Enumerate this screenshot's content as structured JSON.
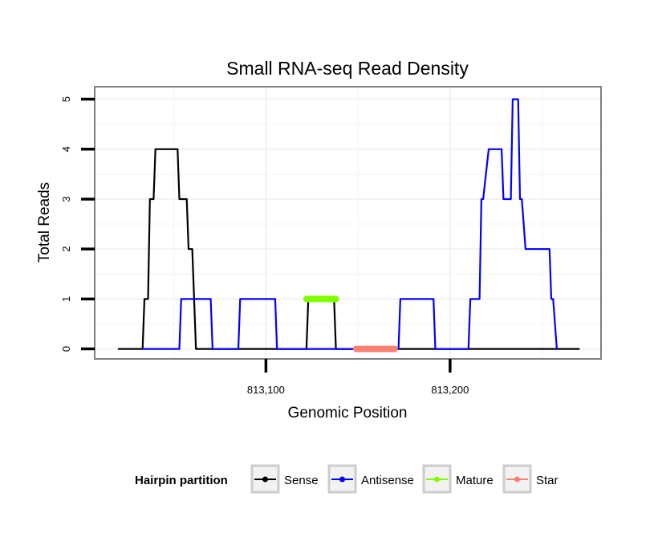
{
  "chart_data": {
    "type": "line",
    "title": "Small RNA-seq Read Density",
    "xlabel": "Genomic Position",
    "ylabel": "Total Reads",
    "xlim": [
      813007,
      813282
    ],
    "ylim": [
      -0.2,
      5.25
    ],
    "x_ticks": [
      813100,
      813200
    ],
    "x_tick_labels": [
      "813,100",
      "813,200"
    ],
    "y_ticks": [
      0,
      1,
      2,
      3,
      4,
      5
    ],
    "y_tick_labels": [
      "0",
      "1",
      "2",
      "3",
      "4",
      "5"
    ],
    "grid": true,
    "legend": {
      "title": "Hairpin partition",
      "position": "bottom",
      "entries": [
        {
          "name": "Sense",
          "color": "#000000"
        },
        {
          "name": "Antisense",
          "color": "#0000ff"
        },
        {
          "name": "Mature",
          "color": "#7fff00"
        },
        {
          "name": "Star",
          "color": "#fa8072"
        }
      ]
    },
    "series": [
      {
        "name": "Sense",
        "color": "#000000",
        "x": [
          813020,
          813033,
          813034,
          813036,
          813037,
          813039,
          813040,
          813044,
          813052,
          813053,
          813057,
          813058,
          813060,
          813062,
          813068,
          813122,
          813123,
          813137,
          813138,
          813160,
          813190,
          813230,
          813270
        ],
        "y": [
          0,
          0,
          1,
          1,
          3,
          3,
          4,
          4,
          4,
          3,
          3,
          2,
          2,
          0,
          0,
          0,
          1,
          1,
          0,
          0,
          0,
          0,
          0
        ]
      },
      {
        "name": "Antisense",
        "color": "#0000ff",
        "x": [
          813033,
          813053,
          813054,
          813070,
          813071,
          813085,
          813086,
          813105,
          813106,
          813172,
          813173,
          813191,
          813192,
          813210,
          813211,
          813216,
          813217,
          813218,
          813221,
          813228,
          813229,
          813233,
          813234,
          813237,
          813238,
          813239,
          813240,
          813241,
          813243,
          813254,
          813255,
          813256,
          813258
        ],
        "y": [
          0,
          0,
          1,
          1,
          0,
          0,
          1,
          1,
          0,
          0,
          1,
          1,
          0,
          0,
          1,
          1,
          3,
          3,
          4,
          4,
          3,
          3,
          5,
          5,
          3,
          3,
          2.5,
          2,
          2,
          2,
          1,
          1,
          0
        ]
      },
      {
        "name": "Mature",
        "color": "#7fff00",
        "x": [
          813122,
          813138
        ],
        "y": [
          1,
          1
        ]
      },
      {
        "name": "Star",
        "color": "#fa8072",
        "x": [
          813149,
          813170
        ],
        "y": [
          0,
          0
        ]
      }
    ]
  }
}
